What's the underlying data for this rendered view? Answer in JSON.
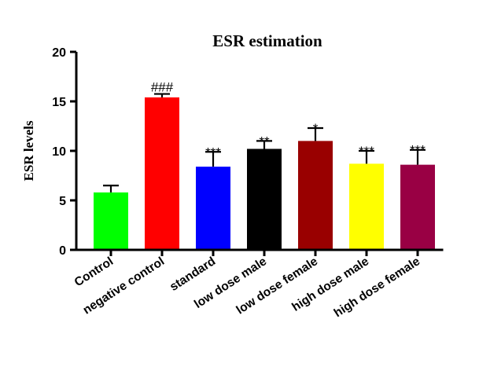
{
  "chart_data": {
    "type": "bar",
    "title": "ESR estimation",
    "xlabel": "",
    "ylabel": "ESR levels",
    "ylim": [
      0,
      20
    ],
    "yticks": [
      0,
      5,
      10,
      15,
      20
    ],
    "categories": [
      "Control",
      "negative control",
      "standard",
      "low dose male",
      "low dose female",
      "high dose male",
      "high dose female"
    ],
    "values": [
      5.8,
      15.4,
      8.4,
      10.2,
      11.0,
      8.7,
      8.6
    ],
    "errors": [
      0.7,
      0.35,
      1.5,
      0.8,
      1.3,
      1.3,
      1.5
    ],
    "significance": [
      "",
      "###",
      "***",
      "**",
      "*",
      "***",
      "***"
    ],
    "colors": [
      "#00ff00",
      "#ff0000",
      "#0000ff",
      "#000000",
      "#990000",
      "#ffff00",
      "#990044"
    ],
    "grid": false,
    "legend": "none"
  }
}
